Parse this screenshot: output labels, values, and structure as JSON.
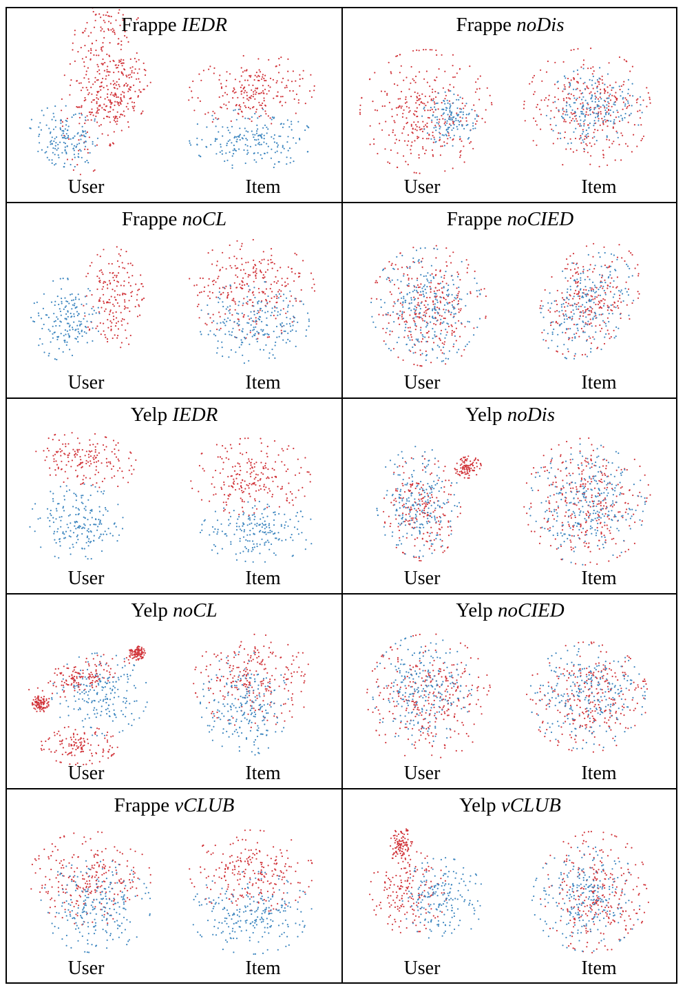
{
  "chart_data": {
    "type": "scatter",
    "colors": {
      "red": "#d1343a",
      "blue": "#3d86bf"
    },
    "subplot_labels": {
      "user": "User",
      "item": "Item"
    },
    "cells": [
      {
        "dataset": "Frappe",
        "model": "IEDR",
        "user": [
          [
            0.55,
            0.22,
            0.25,
            0.75,
            0.18,
            "r"
          ],
          [
            0.3,
            0.68,
            0.28,
            0.22,
            0.2,
            "b"
          ],
          [
            0.72,
            0.38,
            0.18,
            0.28,
            0.4,
            "r"
          ]
        ],
        "item": [
          [
            0.5,
            0.35,
            0.46,
            0.26,
            -0.1,
            "r"
          ],
          [
            0.5,
            0.7,
            0.45,
            0.22,
            0,
            "b"
          ]
        ]
      },
      {
        "dataset": "Frappe",
        "model": "noDis",
        "user": [
          [
            0.48,
            0.5,
            0.48,
            0.45,
            0,
            "r"
          ],
          [
            0.65,
            0.55,
            0.2,
            0.2,
            0,
            "b"
          ]
        ],
        "item": [
          [
            0.5,
            0.48,
            0.46,
            0.44,
            0,
            "r"
          ],
          [
            0.55,
            0.48,
            0.35,
            0.3,
            0,
            "b"
          ]
        ]
      },
      {
        "dataset": "Frappe",
        "model": "noCL",
        "user": [
          [
            0.65,
            0.45,
            0.22,
            0.38,
            0,
            "r"
          ],
          [
            0.3,
            0.6,
            0.25,
            0.3,
            0,
            "b"
          ]
        ],
        "item": [
          [
            0.5,
            0.38,
            0.46,
            0.36,
            0,
            "r"
          ],
          [
            0.52,
            0.62,
            0.4,
            0.3,
            0,
            "b"
          ]
        ]
      },
      {
        "dataset": "Frappe",
        "model": "noCIED",
        "user": [
          [
            0.5,
            0.5,
            0.42,
            0.44,
            0,
            "r"
          ],
          [
            0.48,
            0.5,
            0.4,
            0.42,
            0,
            "b"
          ]
        ],
        "item": [
          [
            0.52,
            0.45,
            0.32,
            0.45,
            0.6,
            "r"
          ],
          [
            0.5,
            0.5,
            0.3,
            0.42,
            0.6,
            "b"
          ]
        ]
      },
      {
        "dataset": "Yelp",
        "model": "IEDR",
        "user": [
          [
            0.45,
            0.2,
            0.38,
            0.2,
            0.2,
            "r"
          ],
          [
            0.38,
            0.65,
            0.34,
            0.28,
            0,
            "b"
          ]
        ],
        "item": [
          [
            0.5,
            0.32,
            0.45,
            0.28,
            0,
            "r"
          ],
          [
            0.55,
            0.72,
            0.42,
            0.22,
            0,
            "b"
          ]
        ]
      },
      {
        "dataset": "Yelp",
        "model": "noDis",
        "user": [
          [
            0.45,
            0.55,
            0.28,
            0.38,
            0,
            "r"
          ],
          [
            0.42,
            0.5,
            0.3,
            0.4,
            0,
            "b"
          ],
          [
            0.78,
            0.25,
            0.1,
            0.08,
            0,
            "r"
          ]
        ],
        "item": [
          [
            0.5,
            0.5,
            0.46,
            0.46,
            0,
            "r"
          ],
          [
            0.5,
            0.52,
            0.42,
            0.44,
            0,
            "b"
          ]
        ]
      },
      {
        "dataset": "Yelp",
        "model": "noCL",
        "user": [
          [
            0.4,
            0.85,
            0.28,
            0.14,
            0,
            "r"
          ],
          [
            0.55,
            0.48,
            0.35,
            0.3,
            0,
            "b"
          ],
          [
            0.4,
            0.35,
            0.38,
            0.12,
            -0.3,
            "r"
          ],
          [
            0.82,
            0.18,
            0.06,
            0.05,
            0,
            "r"
          ],
          [
            0.12,
            0.55,
            0.06,
            0.06,
            0,
            "r"
          ]
        ],
        "item": [
          [
            0.52,
            0.38,
            0.44,
            0.34,
            0,
            "r"
          ],
          [
            0.45,
            0.55,
            0.32,
            0.38,
            0,
            "b"
          ]
        ]
      },
      {
        "dataset": "Yelp",
        "model": "noCIED",
        "user": [
          [
            0.5,
            0.5,
            0.45,
            0.46,
            0,
            "r"
          ],
          [
            0.45,
            0.45,
            0.36,
            0.4,
            0,
            "b"
          ]
        ],
        "item": [
          [
            0.5,
            0.5,
            0.44,
            0.4,
            0,
            "r"
          ],
          [
            0.5,
            0.5,
            0.42,
            0.38,
            0,
            "b"
          ]
        ]
      },
      {
        "dataset": "Frappe",
        "model": "vCLUB",
        "user": [
          [
            0.48,
            0.4,
            0.44,
            0.34,
            0,
            "r"
          ],
          [
            0.52,
            0.6,
            0.4,
            0.34,
            0,
            "b"
          ]
        ],
        "item": [
          [
            0.5,
            0.35,
            0.45,
            0.3,
            0,
            "r"
          ],
          [
            0.5,
            0.65,
            0.44,
            0.3,
            0,
            "b"
          ]
        ]
      },
      {
        "dataset": "Yelp",
        "model": "vCLUB",
        "user": [
          [
            0.35,
            0.5,
            0.28,
            0.3,
            0,
            "r"
          ],
          [
            0.6,
            0.55,
            0.3,
            0.3,
            0,
            "b"
          ],
          [
            0.3,
            0.15,
            0.08,
            0.12,
            0,
            "r"
          ]
        ],
        "item": [
          [
            0.55,
            0.5,
            0.4,
            0.44,
            0,
            "r"
          ],
          [
            0.5,
            0.55,
            0.4,
            0.38,
            0,
            "b"
          ]
        ]
      }
    ]
  }
}
